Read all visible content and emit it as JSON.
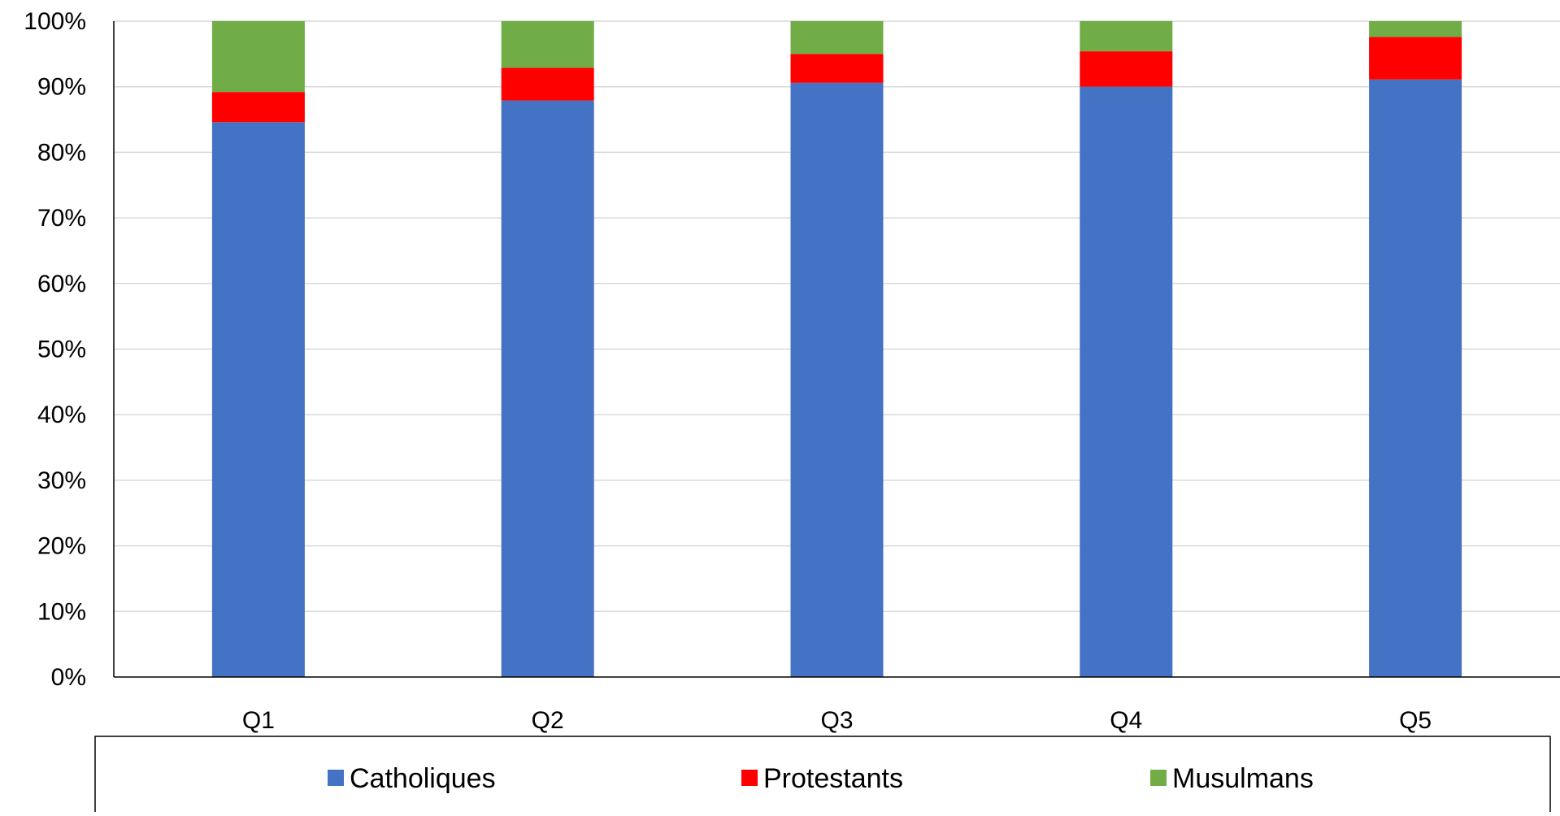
{
  "chart_data": {
    "type": "bar",
    "stacked": true,
    "title": "",
    "xlabel": "",
    "ylabel": "",
    "categories": [
      "Q1",
      "Q2",
      "Q3",
      "Q4",
      "Q5"
    ],
    "series": [
      {
        "name": "Catholiques",
        "color": "#4472C4",
        "values": [
          84.6,
          87.9,
          90.6,
          90.0,
          91.1
        ]
      },
      {
        "name": "Protestants",
        "color": "#FF0000",
        "values": [
          4.6,
          5.0,
          4.4,
          5.4,
          6.5
        ]
      },
      {
        "name": "Musulmans",
        "color": "#70AD47",
        "values": [
          10.8,
          7.1,
          5.0,
          4.6,
          2.4
        ]
      }
    ],
    "ylim": [
      0,
      100
    ],
    "yticks": [
      "0%",
      "10%",
      "20%",
      "30%",
      "40%",
      "50%",
      "60%",
      "70%",
      "80%",
      "90%",
      "100%"
    ],
    "grid": true,
    "legend_position": "bottom",
    "legend": {
      "entries": [
        "Catholiques",
        "Protestants",
        "Musulmans"
      ]
    }
  }
}
